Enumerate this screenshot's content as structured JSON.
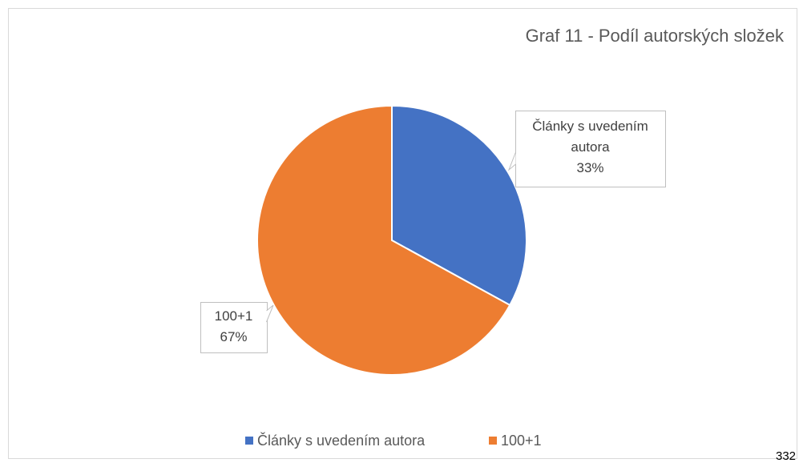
{
  "chart_data": {
    "type": "pie",
    "title": "Graf 11 - Podíl autorských složek",
    "categories": [
      "Články s uvedením autora",
      "100+1"
    ],
    "values": [
      33,
      67
    ],
    "value_labels": [
      "33%",
      "67%"
    ],
    "colors": [
      "#4472c4",
      "#ed7d31"
    ],
    "legend": "bottom"
  },
  "page_number": "332"
}
